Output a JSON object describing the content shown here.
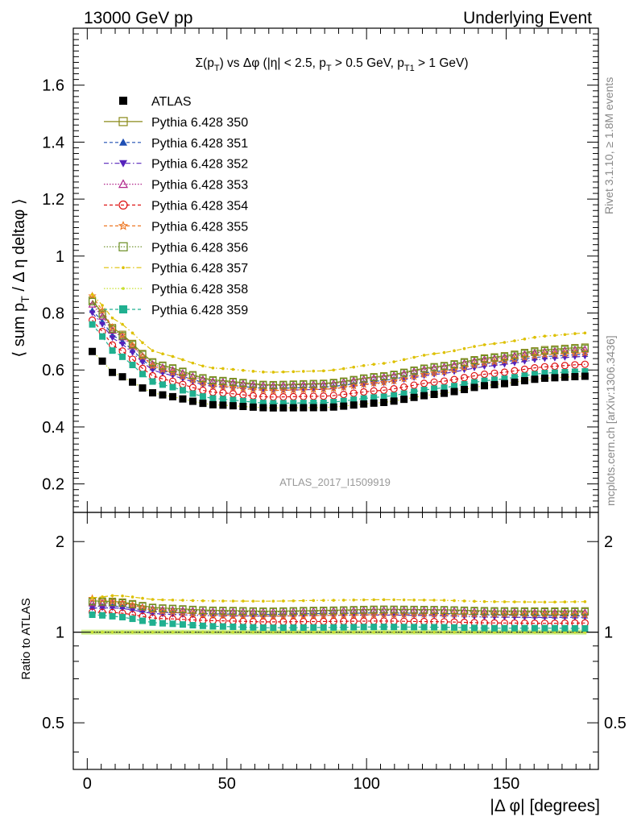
{
  "header": {
    "left": "13000 GeV pp",
    "right": "Underlying Event"
  },
  "plot_title": "Σ(p_T) vs Δφ (|η| < 2.5, p_T > 0.5 GeV, p_T1 > 1 GeV)",
  "analysis_id": "ATLAS_2017_I1509919",
  "side_text": {
    "rivet": "Rivet 3.1.10, ≥ 1.8M events",
    "mcplots": "mcplots.cern.ch [arXiv:1306.3436]"
  },
  "chart_data": [
    {
      "type": "scatter",
      "panel": "main",
      "ylabel": "⟨ sum p_T / Δ η deltaφ ⟩",
      "xlim": [
        -5,
        183
      ],
      "ylim": [
        0.1,
        1.8
      ],
      "yticks": [
        "0.2",
        "0.4",
        "0.6",
        "0.8",
        "1",
        "1.2",
        "1.4",
        "1.6"
      ],
      "x_bin_width": 3.6,
      "x_first_center": 1.8,
      "n_points": 50,
      "series": [
        {
          "name": "ATLAS",
          "color": "#000000",
          "marker": "square-filled",
          "line": "none",
          "anchors": [
            [
              1.8,
              0.665
            ],
            [
              10,
              0.585
            ],
            [
              25,
              0.515
            ],
            [
              45,
              0.478
            ],
            [
              65,
              0.467
            ],
            [
              85,
              0.468
            ],
            [
              105,
              0.485
            ],
            [
              125,
              0.515
            ],
            [
              145,
              0.548
            ],
            [
              165,
              0.572
            ],
            [
              178.2,
              0.578
            ]
          ]
        },
        {
          "name": "Pythia 6.428 350",
          "color": "#8a8a1a",
          "marker": "square-open",
          "line": "solid",
          "anchors": [
            [
              1.8,
              0.845
            ],
            [
              10,
              0.74
            ],
            [
              25,
              0.62
            ],
            [
              45,
              0.565
            ],
            [
              65,
              0.548
            ],
            [
              85,
              0.553
            ],
            [
              105,
              0.578
            ],
            [
              125,
              0.612
            ],
            [
              145,
              0.645
            ],
            [
              165,
              0.672
            ],
            [
              178.2,
              0.68
            ]
          ]
        },
        {
          "name": "Pythia 6.428 351",
          "color": "#1f4fb4",
          "marker": "triangle-up-filled",
          "line": "dashed",
          "anchors": [
            [
              1.8,
              0.81
            ],
            [
              10,
              0.715
            ],
            [
              25,
              0.6
            ],
            [
              45,
              0.55
            ],
            [
              65,
              0.535
            ],
            [
              85,
              0.54
            ],
            [
              105,
              0.562
            ],
            [
              125,
              0.595
            ],
            [
              145,
              0.625
            ],
            [
              165,
              0.648
            ],
            [
              178.2,
              0.655
            ]
          ]
        },
        {
          "name": "Pythia 6.428 352",
          "color": "#5522bb",
          "marker": "triangle-down-filled",
          "line": "dashdot",
          "anchors": [
            [
              1.8,
              0.8
            ],
            [
              10,
              0.705
            ],
            [
              25,
              0.592
            ],
            [
              45,
              0.542
            ],
            [
              65,
              0.528
            ],
            [
              85,
              0.532
            ],
            [
              105,
              0.553
            ],
            [
              125,
              0.585
            ],
            [
              145,
              0.615
            ],
            [
              165,
              0.64
            ],
            [
              178.2,
              0.648
            ]
          ]
        },
        {
          "name": "Pythia 6.428 353",
          "color": "#b0258b",
          "marker": "triangle-up-open",
          "line": "dotted",
          "anchors": [
            [
              1.8,
              0.83
            ],
            [
              10,
              0.73
            ],
            [
              25,
              0.612
            ],
            [
              45,
              0.56
            ],
            [
              65,
              0.545
            ],
            [
              85,
              0.55
            ],
            [
              105,
              0.574
            ],
            [
              125,
              0.608
            ],
            [
              145,
              0.64
            ],
            [
              165,
              0.665
            ],
            [
              178.2,
              0.672
            ]
          ]
        },
        {
          "name": "Pythia 6.428 354",
          "color": "#dd1111",
          "marker": "circle-open",
          "line": "dashed",
          "anchors": [
            [
              1.8,
              0.775
            ],
            [
              10,
              0.68
            ],
            [
              25,
              0.572
            ],
            [
              45,
              0.522
            ],
            [
              65,
              0.505
            ],
            [
              85,
              0.508
            ],
            [
              105,
              0.528
            ],
            [
              125,
              0.558
            ],
            [
              145,
              0.588
            ],
            [
              165,
              0.612
            ],
            [
              178.2,
              0.62
            ]
          ]
        },
        {
          "name": "Pythia 6.428 355",
          "color": "#ee7722",
          "marker": "star-open",
          "line": "dashed",
          "anchors": [
            [
              1.8,
              0.86
            ],
            [
              10,
              0.74
            ],
            [
              25,
              0.605
            ],
            [
              45,
              0.545
            ],
            [
              65,
              0.528
            ],
            [
              85,
              0.532
            ],
            [
              105,
              0.555
            ],
            [
              125,
              0.59
            ],
            [
              145,
              0.628
            ],
            [
              165,
              0.655
            ],
            [
              178.2,
              0.66
            ]
          ]
        },
        {
          "name": "Pythia 6.428 356",
          "color": "#6b8e23",
          "marker": "square-open",
          "line": "dotted",
          "anchors": [
            [
              1.8,
              0.84
            ],
            [
              10,
              0.735
            ],
            [
              25,
              0.618
            ],
            [
              45,
              0.563
            ],
            [
              65,
              0.546
            ],
            [
              85,
              0.551
            ],
            [
              105,
              0.576
            ],
            [
              125,
              0.61
            ],
            [
              145,
              0.642
            ],
            [
              165,
              0.668
            ],
            [
              178.2,
              0.676
            ]
          ]
        },
        {
          "name": "Pythia 6.428 357",
          "color": "#ddc000",
          "marker": "dot",
          "line": "dashdot",
          "anchors": [
            [
              1.8,
              0.865
            ],
            [
              10,
              0.775
            ],
            [
              25,
              0.66
            ],
            [
              45,
              0.607
            ],
            [
              65,
              0.592
            ],
            [
              85,
              0.597
            ],
            [
              105,
              0.622
            ],
            [
              125,
              0.658
            ],
            [
              145,
              0.692
            ],
            [
              165,
              0.72
            ],
            [
              178.2,
              0.73
            ]
          ]
        },
        {
          "name": "Pythia 6.428 358",
          "color": "#c8e030",
          "marker": "dot",
          "line": "dotted",
          "anchors": [
            [
              1.8,
              0.665
            ],
            [
              10,
              0.585
            ],
            [
              25,
              0.515
            ],
            [
              45,
              0.478
            ],
            [
              65,
              0.467
            ],
            [
              85,
              0.468
            ],
            [
              105,
              0.485
            ],
            [
              125,
              0.515
            ],
            [
              145,
              0.548
            ],
            [
              165,
              0.572
            ],
            [
              178.2,
              0.578
            ]
          ]
        },
        {
          "name": "Pythia 6.428 359",
          "color": "#20b090",
          "marker": "square-filled",
          "line": "dashed",
          "anchors": [
            [
              1.8,
              0.76
            ],
            [
              10,
              0.66
            ],
            [
              25,
              0.552
            ],
            [
              45,
              0.5
            ],
            [
              65,
              0.483
            ],
            [
              85,
              0.485
            ],
            [
              105,
              0.505
            ],
            [
              125,
              0.535
            ],
            [
              145,
              0.565
            ],
            [
              165,
              0.59
            ],
            [
              178.2,
              0.595
            ]
          ]
        }
      ]
    },
    {
      "type": "scatter",
      "panel": "ratio",
      "ylabel": "Ratio to ATLAS",
      "yscale": "log",
      "ylim": [
        0.35,
        2.5
      ],
      "yticks": [
        "0.5",
        "1",
        "2"
      ],
      "xlim": [
        -5,
        183
      ],
      "xticks": [
        "0",
        "50",
        "100",
        "150"
      ],
      "xlabel": "|Δ φ| [degrees]",
      "reference_band": {
        "value": 1.0,
        "color": "#ccee88"
      }
    }
  ]
}
